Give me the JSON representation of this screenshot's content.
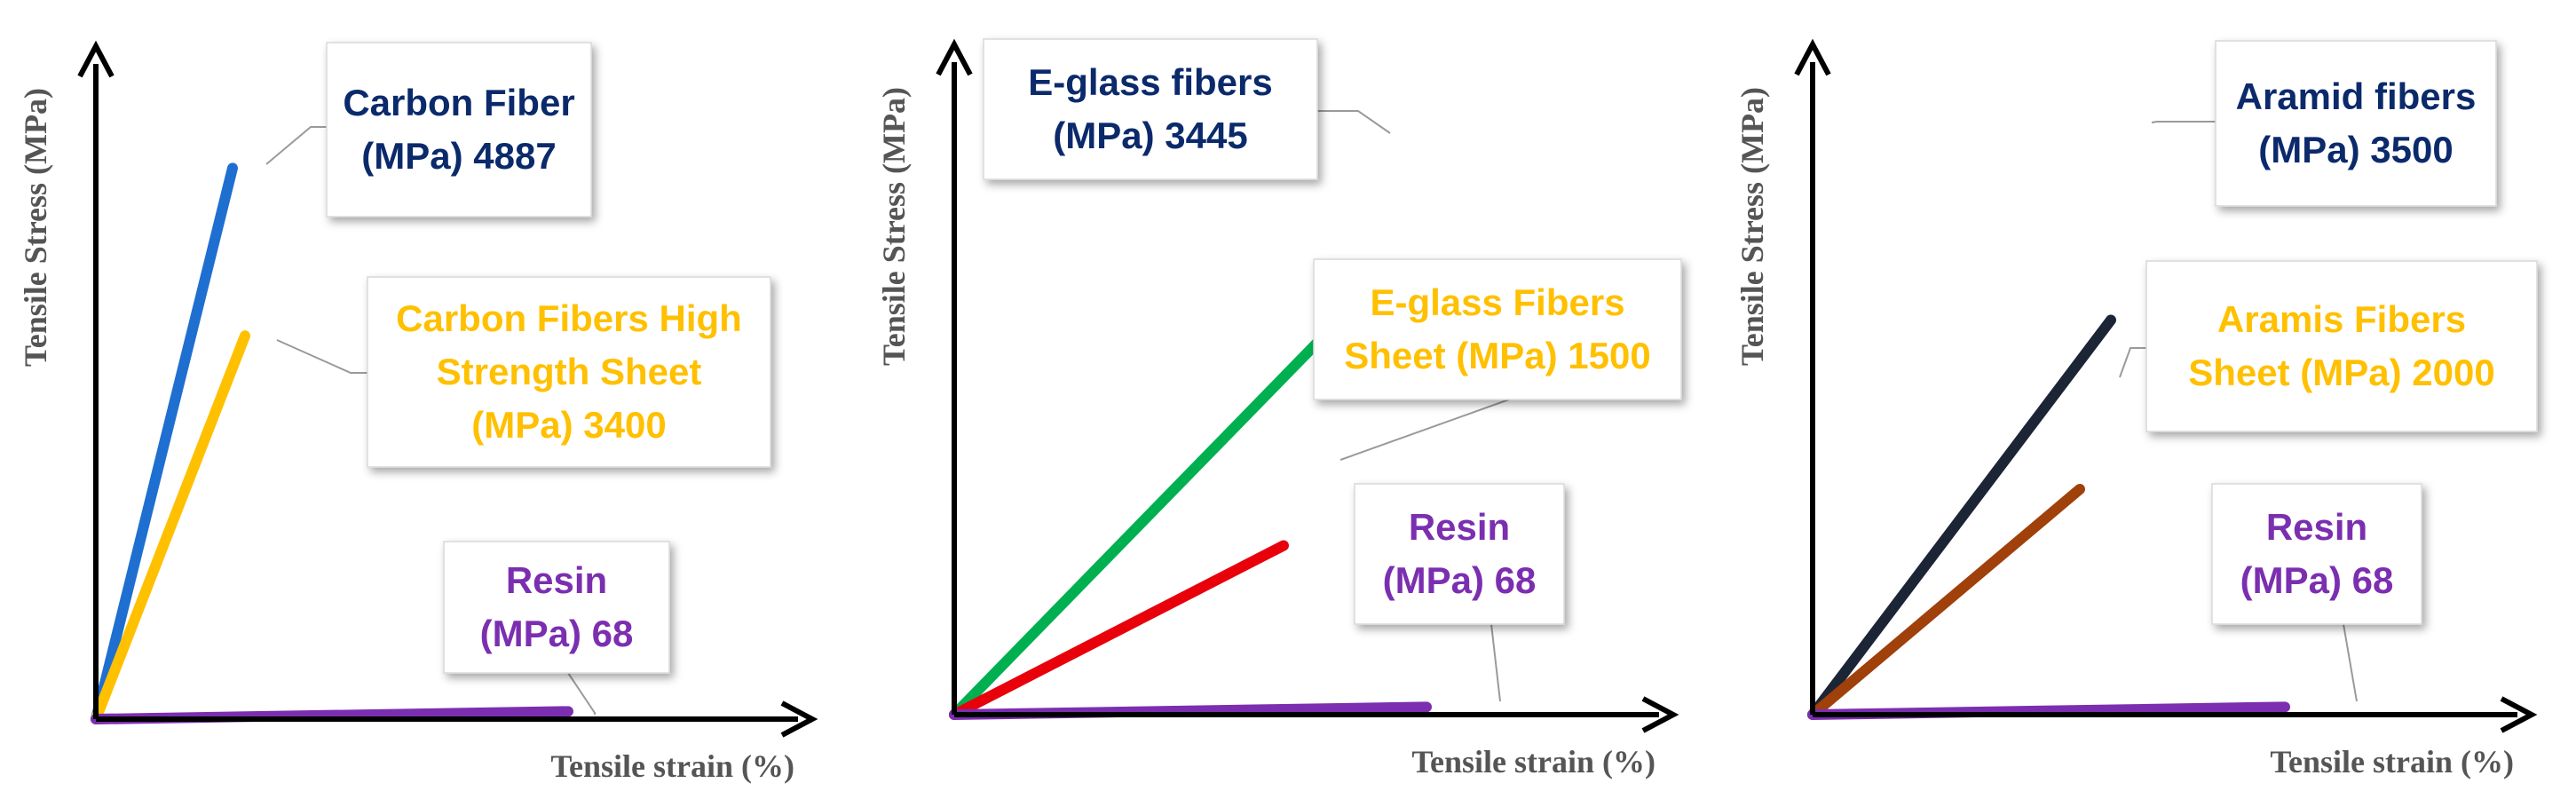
{
  "chart_data": [
    {
      "type": "line",
      "title": "",
      "xlabel": "Tensile strain (%)",
      "ylabel": "Tensile Stress (MPa)",
      "ylim": [
        0,
        5000
      ],
      "series": [
        {
          "name": "Carbon Fiber",
          "ultimate_strength_mpa": 4887,
          "strain_end": 0.22,
          "color": "#1f6fd1",
          "label_lines": [
            "Carbon Fiber",
            "(MPa)  4887"
          ],
          "label_color": "#0b2a6b"
        },
        {
          "name": "Carbon Fibers High Strength Sheet",
          "ultimate_strength_mpa": 3400,
          "strain_end": 0.24,
          "color": "#ffc000",
          "label_lines": [
            "Carbon Fibers High",
            "Strength Sheet",
            "(MPa)  3400"
          ],
          "label_color": "#ffc000"
        },
        {
          "name": "Resin",
          "ultimate_strength_mpa": 68,
          "strain_end": 0.76,
          "color": "#7b2fb0",
          "label_lines": [
            "Resin",
            "(MPa) 68"
          ],
          "label_color": "#7b2fb0"
        }
      ]
    },
    {
      "type": "line",
      "title": "",
      "xlabel": "Tensile strain (%)",
      "ylabel": "Tensile Stress (MPa)",
      "ylim": [
        0,
        5000
      ],
      "series": [
        {
          "name": "E-glass fibers",
          "ultimate_strength_mpa": 3445,
          "strain_end": 0.61,
          "color": "#00b050",
          "label_lines": [
            "E-glass fibers",
            "(MPa) 3445"
          ],
          "label_color": "#0b2a6b"
        },
        {
          "name": "E-glass Fibers Sheet",
          "ultimate_strength_mpa": 1500,
          "strain_end": 0.53,
          "color": "#e8000b",
          "label_lines": [
            "E-glass Fibers",
            "Sheet (MPa) 1500"
          ],
          "label_color": "#ffc000"
        },
        {
          "name": "Resin",
          "ultimate_strength_mpa": 68,
          "strain_end": 0.76,
          "color": "#7b2fb0",
          "label_lines": [
            "Resin",
            "(MPa) 68"
          ],
          "label_color": "#7b2fb0"
        }
      ]
    },
    {
      "type": "line",
      "title": "",
      "xlabel": "Tensile strain (%)",
      "ylabel": "Tensile Stress (MPa)",
      "ylim": [
        0,
        5000
      ],
      "series": [
        {
          "name": "Aramid fibers",
          "ultimate_strength_mpa": 3500,
          "strain_end": 0.48,
          "color": "#1b2535",
          "label_lines": [
            "Aramid fibers",
            "(MPa) 3500"
          ],
          "label_color": "#0b2a6b"
        },
        {
          "name": "Aramis Fibers Sheet",
          "ultimate_strength_mpa": 2000,
          "strain_end": 0.43,
          "color": "#a0400a",
          "label_lines": [
            "Aramis Fibers",
            "Sheet (MPa) 2000"
          ],
          "label_color": "#ffc000"
        },
        {
          "name": "Resin",
          "ultimate_strength_mpa": 68,
          "strain_end": 0.76,
          "color": "#7b2fb0",
          "label_lines": [
            "Resin",
            "(MPa) 68"
          ],
          "label_color": "#7b2fb0"
        }
      ]
    }
  ]
}
